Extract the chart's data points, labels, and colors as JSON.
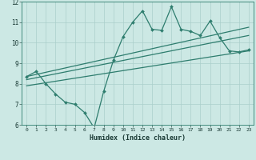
{
  "xlabel": "Humidex (Indice chaleur)",
  "bg_color": "#cce8e4",
  "line_color": "#2e7d6e",
  "grid_color": "#aacfcb",
  "xlim": [
    -0.5,
    23.5
  ],
  "ylim": [
    6,
    12
  ],
  "yticks": [
    6,
    7,
    8,
    9,
    10,
    11,
    12
  ],
  "xticks": [
    0,
    1,
    2,
    3,
    4,
    5,
    6,
    7,
    8,
    9,
    10,
    11,
    12,
    13,
    14,
    15,
    16,
    17,
    18,
    19,
    20,
    21,
    22,
    23
  ],
  "main_x": [
    0,
    1,
    2,
    3,
    4,
    5,
    6,
    7,
    8,
    9,
    10,
    11,
    12,
    13,
    14,
    15,
    16,
    17,
    18,
    19,
    20,
    21,
    22,
    23
  ],
  "main_y": [
    8.35,
    8.6,
    8.0,
    7.5,
    7.1,
    7.0,
    6.6,
    5.85,
    7.65,
    9.15,
    10.3,
    11.0,
    11.55,
    10.65,
    10.6,
    11.75,
    10.65,
    10.55,
    10.35,
    11.05,
    10.25,
    9.6,
    9.55,
    9.65
  ],
  "trend1_x": [
    0,
    23
  ],
  "trend1_y": [
    8.35,
    10.75
  ],
  "trend2_x": [
    0,
    23
  ],
  "trend2_y": [
    8.2,
    10.35
  ],
  "trend3_x": [
    0,
    23
  ],
  "trend3_y": [
    7.9,
    9.6
  ]
}
